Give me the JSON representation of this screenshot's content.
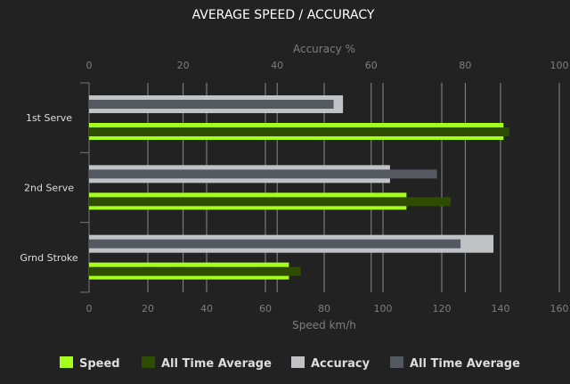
{
  "chart_data": {
    "type": "bar",
    "orientation": "horizontal",
    "title": "AVERAGE SPEED / ACCURACY",
    "categories": [
      "1st Serve",
      "2nd Serve",
      "Grnd Stroke"
    ],
    "top_axis": {
      "label": "Accuracy %",
      "range": [
        0,
        100
      ],
      "ticks": [
        0,
        20,
        40,
        60,
        80,
        100
      ]
    },
    "bottom_axis": {
      "label": "Speed km/h",
      "range": [
        0,
        160
      ],
      "ticks": [
        0,
        20,
        40,
        60,
        80,
        100,
        120,
        140,
        160
      ]
    },
    "grid": true,
    "legend_position": "bottom",
    "series": [
      {
        "name": "Speed",
        "axis": "bottom",
        "color": "#a6ff1e",
        "values": [
          141,
          108,
          68
        ]
      },
      {
        "name": "All Time Average",
        "axis": "bottom",
        "color": "#2f4d00",
        "values": [
          143,
          123,
          72
        ]
      },
      {
        "name": "Accuracy",
        "axis": "top",
        "color": "#bfc3c6",
        "values": [
          54,
          64,
          86
        ]
      },
      {
        "name": "All Time Average",
        "axis": "top",
        "color": "#545961",
        "values": [
          52,
          74,
          79
        ]
      }
    ]
  }
}
